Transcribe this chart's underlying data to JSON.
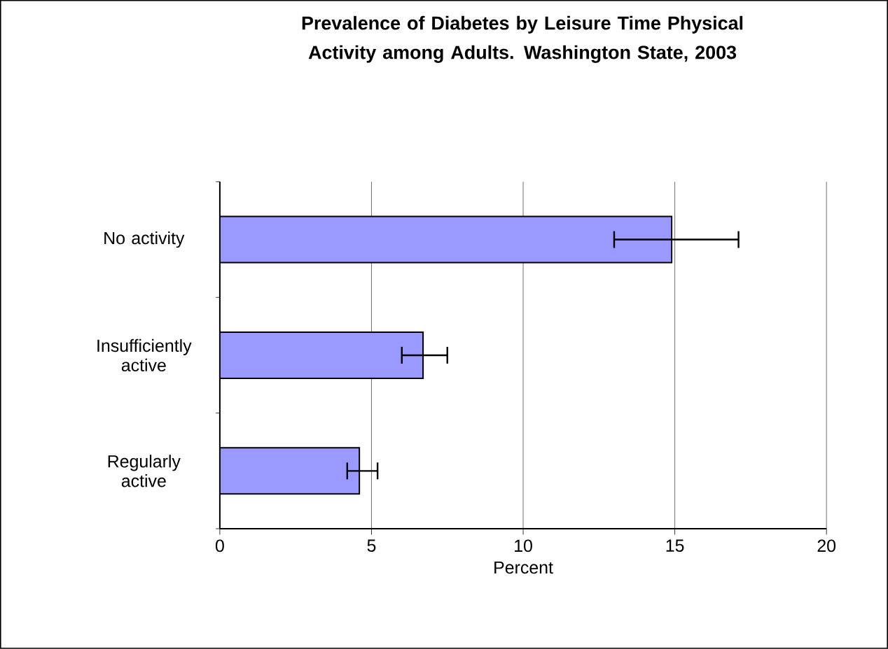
{
  "chart_data": {
    "type": "bar",
    "orientation": "horizontal",
    "title": "Prevalence of Diabetes by Leisure Time Physical Activity among Adults. Washington State, 2003",
    "xlabel": "Percent",
    "categories": [
      "No activity",
      "Insufficiently active",
      "Regularly active"
    ],
    "values": [
      14.9,
      6.7,
      4.6
    ],
    "errors": [
      [
        13.0,
        17.1
      ],
      [
        6.0,
        7.5
      ],
      [
        4.2,
        5.2
      ]
    ],
    "color": "#9999ff",
    "xlim": [
      0,
      20
    ],
    "xticks": [
      0,
      5,
      10,
      15,
      20
    ],
    "grid": "x"
  }
}
